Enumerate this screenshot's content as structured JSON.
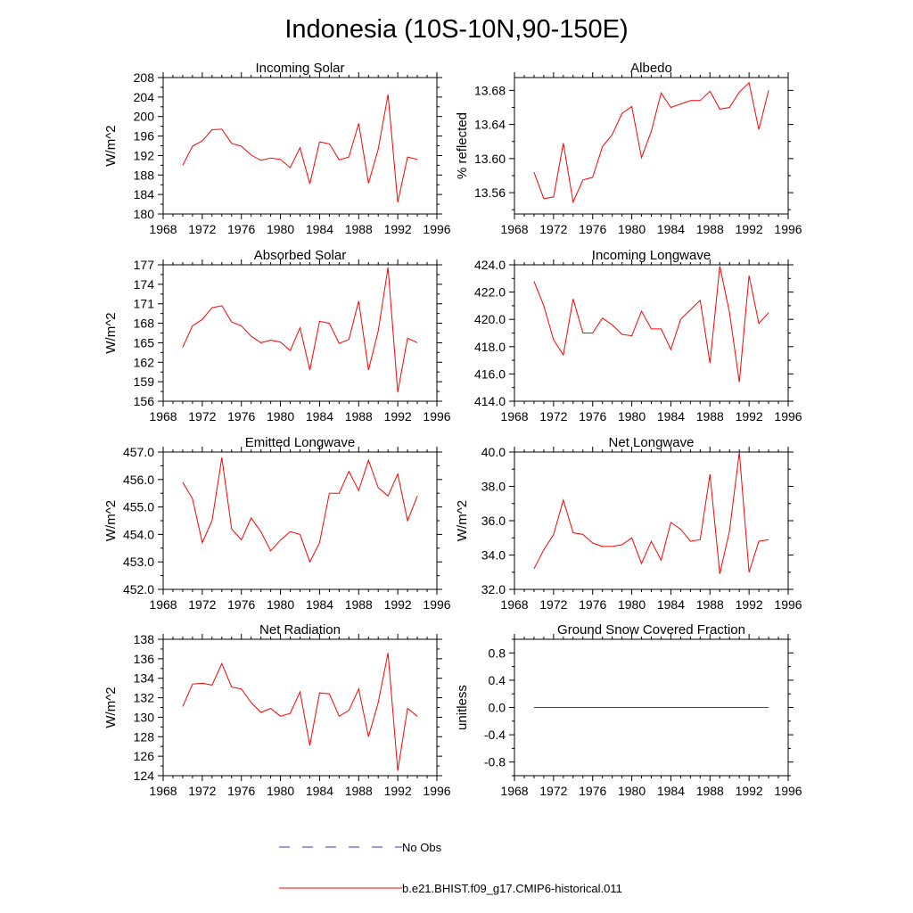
{
  "figure": {
    "title": "Indonesia (10S-10N,90-150E)"
  },
  "legend": {
    "items": [
      {
        "label": "No Obs",
        "color": "#3333cc",
        "style": "dashed"
      },
      {
        "label": "b.e21.BHIST.f09_g17.CMIP6-historical.011",
        "color": "#ff0000",
        "style": "solid"
      }
    ]
  },
  "chart_data": [
    {
      "type": "line",
      "title": "Incoming Solar",
      "xlabel": "",
      "ylabel": "W/m^2",
      "xlim": [
        1968,
        1996
      ],
      "ylim": [
        180,
        208
      ],
      "xticks": [
        1968,
        1972,
        1976,
        1980,
        1984,
        1988,
        1992,
        1996
      ],
      "yticks": [
        180,
        184,
        188,
        192,
        196,
        200,
        204,
        208
      ],
      "ytick_labels": [
        "180",
        "184",
        "188",
        "192",
        "196",
        "200",
        "204",
        "208"
      ],
      "x": [
        1970,
        1971,
        1972,
        1973,
        1974,
        1975,
        1976,
        1977,
        1978,
        1979,
        1980,
        1981,
        1982,
        1983,
        1984,
        1985,
        1986,
        1987,
        1988,
        1989,
        1990,
        1991,
        1992,
        1993,
        1994
      ],
      "series": [
        {
          "color": "#ff0000",
          "values": [
            190.0,
            193.9,
            195.0,
            197.3,
            197.4,
            194.5,
            193.9,
            192.1,
            191.0,
            191.5,
            191.2,
            189.5,
            193.6,
            186.2,
            194.8,
            194.4,
            191.1,
            191.7,
            198.6,
            186.3,
            193.3,
            204.5,
            182.4,
            191.7,
            191.2
          ]
        }
      ]
    },
    {
      "type": "line",
      "title": "Albedo",
      "xlabel": "",
      "ylabel": "% reflected",
      "xlim": [
        1968,
        1996
      ],
      "ylim": [
        13.535,
        13.695
      ],
      "xticks": [
        1968,
        1972,
        1976,
        1980,
        1984,
        1988,
        1992,
        1996
      ],
      "yticks": [
        13.56,
        13.6,
        13.64,
        13.68
      ],
      "ytick_labels": [
        "13.56",
        "13.60",
        "13.64",
        "13.68"
      ],
      "x": [
        1970,
        1971,
        1972,
        1973,
        1974,
        1975,
        1976,
        1977,
        1978,
        1979,
        1980,
        1981,
        1982,
        1983,
        1984,
        1985,
        1986,
        1987,
        1988,
        1989,
        1990,
        1991,
        1992,
        1993,
        1994
      ],
      "series": [
        {
          "color": "#ff0000",
          "values": [
            13.584,
            13.553,
            13.555,
            13.618,
            13.549,
            13.575,
            13.578,
            13.614,
            13.628,
            13.653,
            13.661,
            13.601,
            13.632,
            13.677,
            13.66,
            13.664,
            13.668,
            13.668,
            13.679,
            13.658,
            13.66,
            13.678,
            13.689,
            13.634,
            13.68
          ]
        }
      ]
    },
    {
      "type": "line",
      "title": "Absorbed Solar",
      "xlabel": "",
      "ylabel": "W/m^2",
      "xlim": [
        1968,
        1996
      ],
      "ylim": [
        156,
        177
      ],
      "xticks": [
        1968,
        1972,
        1976,
        1980,
        1984,
        1988,
        1992,
        1996
      ],
      "yticks": [
        156,
        159,
        162,
        165,
        168,
        171,
        174,
        177
      ],
      "ytick_labels": [
        "156",
        "159",
        "162",
        "165",
        "168",
        "171",
        "174",
        "177"
      ],
      "x": [
        1970,
        1971,
        1972,
        1973,
        1974,
        1975,
        1976,
        1977,
        1978,
        1979,
        1980,
        1981,
        1982,
        1983,
        1984,
        1985,
        1986,
        1987,
        1988,
        1989,
        1990,
        1991,
        1992,
        1993,
        1994
      ],
      "series": [
        {
          "color": "#ff0000",
          "values": [
            164.3,
            167.6,
            168.6,
            170.4,
            170.7,
            168.2,
            167.6,
            166.0,
            165.0,
            165.4,
            165.1,
            163.8,
            167.3,
            160.8,
            168.3,
            168.0,
            164.9,
            165.5,
            171.4,
            160.8,
            166.8,
            176.6,
            157.4,
            165.7,
            165.0
          ]
        }
      ]
    },
    {
      "type": "line",
      "title": "Incoming Longwave",
      "xlabel": "",
      "ylabel": "",
      "xlim": [
        1968,
        1996
      ],
      "ylim": [
        414.0,
        424.0
      ],
      "xticks": [
        1968,
        1972,
        1976,
        1980,
        1984,
        1988,
        1992,
        1996
      ],
      "yticks": [
        414.0,
        416.0,
        418.0,
        420.0,
        422.0,
        424.0
      ],
      "ytick_labels": [
        "414.0",
        "416.0",
        "418.0",
        "420.0",
        "422.0",
        "424.0"
      ],
      "x": [
        1970,
        1971,
        1972,
        1973,
        1974,
        1975,
        1976,
        1977,
        1978,
        1979,
        1980,
        1981,
        1982,
        1983,
        1984,
        1985,
        1986,
        1987,
        1988,
        1989,
        1990,
        1991,
        1992,
        1993,
        1994
      ],
      "series": [
        {
          "color": "#ff0000",
          "values": [
            422.8,
            421.0,
            418.5,
            417.4,
            421.5,
            419.0,
            419.0,
            420.1,
            419.6,
            418.9,
            418.8,
            420.6,
            419.3,
            419.3,
            417.8,
            420.0,
            420.7,
            421.4,
            416.8,
            423.9,
            420.5,
            415.4,
            423.2,
            419.7,
            420.5
          ]
        }
      ]
    },
    {
      "type": "line",
      "title": "Emitted Longwave",
      "xlabel": "",
      "ylabel": "W/m^2",
      "xlim": [
        1968,
        1996
      ],
      "ylim": [
        452.0,
        457.0
      ],
      "xticks": [
        1968,
        1972,
        1976,
        1980,
        1984,
        1988,
        1992,
        1996
      ],
      "yticks": [
        452.0,
        453.0,
        454.0,
        455.0,
        456.0,
        457.0
      ],
      "ytick_labels": [
        "452.0",
        "453.0",
        "454.0",
        "455.0",
        "456.0",
        "457.0"
      ],
      "x": [
        1970,
        1971,
        1972,
        1973,
        1974,
        1975,
        1976,
        1977,
        1978,
        1979,
        1980,
        1981,
        1982,
        1983,
        1984,
        1985,
        1986,
        1987,
        1988,
        1989,
        1990,
        1991,
        1992,
        1993,
        1994
      ],
      "series": [
        {
          "color": "#ff0000",
          "values": [
            455.9,
            455.3,
            453.7,
            454.5,
            456.8,
            454.2,
            453.8,
            454.6,
            454.1,
            453.4,
            453.8,
            454.1,
            454.0,
            453.0,
            453.7,
            455.5,
            455.5,
            456.3,
            455.6,
            456.7,
            455.7,
            455.4,
            456.2,
            454.5,
            455.4
          ]
        }
      ]
    },
    {
      "type": "line",
      "title": "Net Longwave",
      "xlabel": "",
      "ylabel": "W/m^2",
      "xlim": [
        1968,
        1996
      ],
      "ylim": [
        32.0,
        40.0
      ],
      "xticks": [
        1968,
        1972,
        1976,
        1980,
        1984,
        1988,
        1992,
        1996
      ],
      "yticks": [
        32.0,
        34.0,
        36.0,
        38.0,
        40.0
      ],
      "ytick_labels": [
        "32.0",
        "34.0",
        "36.0",
        "38.0",
        "40.0"
      ],
      "x": [
        1970,
        1971,
        1972,
        1973,
        1974,
        1975,
        1976,
        1977,
        1978,
        1979,
        1980,
        1981,
        1982,
        1983,
        1984,
        1985,
        1986,
        1987,
        1988,
        1989,
        1990,
        1991,
        1992,
        1993,
        1994
      ],
      "series": [
        {
          "color": "#ff0000",
          "values": [
            33.2,
            34.3,
            35.2,
            37.2,
            35.3,
            35.2,
            34.7,
            34.5,
            34.5,
            34.6,
            35.0,
            33.5,
            34.8,
            33.7,
            35.9,
            35.5,
            34.8,
            34.9,
            38.7,
            32.9,
            35.4,
            40.0,
            33.0,
            34.8,
            34.9
          ]
        }
      ]
    },
    {
      "type": "line",
      "title": "Net Radiation",
      "xlabel": "",
      "ylabel": "W/m^2",
      "xlim": [
        1968,
        1996
      ],
      "ylim": [
        124,
        138
      ],
      "xticks": [
        1968,
        1972,
        1976,
        1980,
        1984,
        1988,
        1992,
        1996
      ],
      "yticks": [
        124,
        126,
        128,
        130,
        132,
        134,
        136,
        138
      ],
      "ytick_labels": [
        "124",
        "126",
        "128",
        "130",
        "132",
        "134",
        "136",
        "138"
      ],
      "x": [
        1970,
        1971,
        1972,
        1973,
        1974,
        1975,
        1976,
        1977,
        1978,
        1979,
        1980,
        1981,
        1982,
        1983,
        1984,
        1985,
        1986,
        1987,
        1988,
        1989,
        1990,
        1991,
        1992,
        1993,
        1994
      ],
      "series": [
        {
          "color": "#ff0000",
          "values": [
            131.1,
            133.4,
            133.5,
            133.3,
            135.5,
            133.1,
            132.9,
            131.5,
            130.5,
            130.9,
            130.1,
            130.4,
            132.6,
            127.1,
            132.5,
            132.4,
            130.1,
            130.7,
            132.9,
            128.0,
            131.5,
            136.6,
            124.5,
            130.9,
            130.1
          ]
        }
      ]
    },
    {
      "type": "line",
      "title": "Ground Snow Covered Fraction",
      "xlabel": "",
      "ylabel": "unitless",
      "xlim": [
        1968,
        1996
      ],
      "ylim": [
        -1.0,
        1.0
      ],
      "xticks": [
        1968,
        1972,
        1976,
        1980,
        1984,
        1988,
        1992,
        1996
      ],
      "yticks": [
        -0.8,
        -0.4,
        0.0,
        0.4,
        0.8
      ],
      "ytick_labels": [
        "-0.8",
        "-0.4",
        "0.0",
        "0.4",
        "0.8"
      ],
      "x": [
        1970,
        1971,
        1972,
        1973,
        1974,
        1975,
        1976,
        1977,
        1978,
        1979,
        1980,
        1981,
        1982,
        1983,
        1984,
        1985,
        1986,
        1987,
        1988,
        1989,
        1990,
        1991,
        1992,
        1993,
        1994
      ],
      "series": [
        {
          "color": "#ff0000",
          "values": [
            0,
            0,
            0,
            0,
            0,
            0,
            0,
            0,
            0,
            0,
            0,
            0,
            0,
            0,
            0,
            0,
            0,
            0,
            0,
            0,
            0,
            0,
            0,
            0,
            0
          ]
        }
      ]
    }
  ]
}
